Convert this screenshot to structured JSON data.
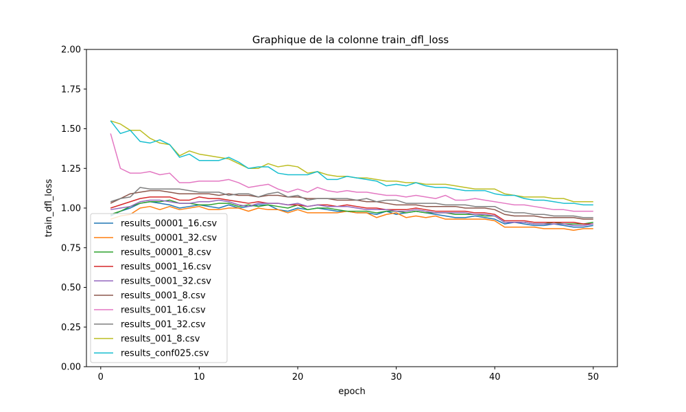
{
  "chart_data": {
    "type": "line",
    "title": "Graphique de la colonne train_dfl_loss",
    "xlabel": "epoch",
    "ylabel": "train_dfl_loss",
    "xlim": [
      -1.45,
      52.45
    ],
    "ylim": [
      0,
      2
    ],
    "xticks": [
      0,
      10,
      20,
      30,
      40,
      50
    ],
    "yticks": [
      0.0,
      0.25,
      0.5,
      0.75,
      1.0,
      1.25,
      1.5,
      1.75,
      2.0
    ],
    "ytick_labels": [
      "0.00",
      "0.25",
      "0.50",
      "0.75",
      "1.00",
      "1.25",
      "1.50",
      "1.75",
      "2.00"
    ],
    "grid": false,
    "legend_position": "lower-left",
    "x": [
      1,
      2,
      3,
      4,
      5,
      6,
      7,
      8,
      9,
      10,
      11,
      12,
      13,
      14,
      15,
      16,
      17,
      18,
      19,
      20,
      21,
      22,
      23,
      24,
      25,
      26,
      27,
      28,
      29,
      30,
      31,
      32,
      33,
      34,
      35,
      36,
      37,
      38,
      39,
      40,
      41,
      42,
      43,
      44,
      45,
      46,
      47,
      48,
      49,
      50
    ],
    "series": [
      {
        "name": "results_00001_16.csv",
        "color": "#1f77b4",
        "values": [
          0.95,
          0.98,
          1.0,
          1.03,
          1.04,
          1.03,
          1.02,
          1.0,
          1.01,
          1.02,
          1.01,
          1.0,
          1.02,
          1.0,
          1.01,
          1.02,
          1.02,
          0.99,
          0.98,
          1.0,
          0.99,
          1.0,
          0.99,
          0.98,
          0.98,
          0.97,
          0.97,
          0.96,
          0.98,
          0.96,
          0.97,
          0.98,
          0.97,
          0.96,
          0.95,
          0.94,
          0.94,
          0.95,
          0.94,
          0.93,
          0.9,
          0.91,
          0.9,
          0.89,
          0.89,
          0.9,
          0.89,
          0.88,
          0.88,
          0.89
        ]
      },
      {
        "name": "results_00001_32.csv",
        "color": "#ff7f0e",
        "values": [
          0.93,
          0.95,
          0.96,
          1.0,
          1.01,
          0.99,
          1.01,
          0.99,
          1.0,
          1.01,
          0.99,
          0.99,
          1.0,
          1.0,
          0.98,
          1.0,
          0.99,
          0.99,
          0.97,
          0.99,
          0.97,
          0.97,
          0.97,
          0.97,
          0.98,
          0.97,
          0.97,
          0.94,
          0.96,
          0.97,
          0.94,
          0.95,
          0.94,
          0.95,
          0.93,
          0.93,
          0.93,
          0.93,
          0.93,
          0.92,
          0.88,
          0.88,
          0.88,
          0.88,
          0.87,
          0.87,
          0.87,
          0.86,
          0.87,
          0.87
        ]
      },
      {
        "name": "results_00001_8.csv",
        "color": "#2ca02c",
        "values": [
          0.96,
          0.98,
          1.01,
          1.03,
          1.04,
          1.04,
          1.05,
          1.03,
          1.03,
          1.02,
          1.02,
          1.03,
          1.03,
          1.01,
          1.02,
          1.01,
          1.02,
          1.01,
          1.0,
          1.02,
          0.99,
          1.0,
          1.0,
          0.99,
          0.98,
          0.98,
          0.98,
          0.97,
          0.98,
          0.98,
          0.97,
          0.98,
          0.97,
          0.97,
          0.97,
          0.96,
          0.96,
          0.96,
          0.95,
          0.95,
          0.91,
          0.91,
          0.91,
          0.9,
          0.9,
          0.91,
          0.9,
          0.9,
          0.9,
          0.91
        ]
      },
      {
        "name": "results_0001_16.csv",
        "color": "#d62728",
        "values": [
          1.0,
          1.02,
          1.04,
          1.06,
          1.07,
          1.07,
          1.07,
          1.05,
          1.05,
          1.07,
          1.06,
          1.06,
          1.05,
          1.04,
          1.03,
          1.04,
          1.03,
          1.03,
          1.02,
          1.02,
          1.01,
          1.02,
          1.02,
          1.01,
          1.02,
          1.01,
          1.0,
          1.0,
          0.99,
          0.99,
          0.99,
          1.0,
          0.99,
          0.98,
          0.98,
          0.98,
          0.98,
          0.97,
          0.97,
          0.96,
          0.92,
          0.92,
          0.92,
          0.91,
          0.91,
          0.91,
          0.91,
          0.91,
          0.9,
          0.9
        ]
      },
      {
        "name": "results_0001_32.csv",
        "color": "#9467bd",
        "values": [
          0.99,
          1.0,
          1.01,
          1.04,
          1.05,
          1.05,
          1.04,
          1.03,
          1.03,
          1.04,
          1.04,
          1.05,
          1.04,
          1.02,
          1.01,
          1.03,
          1.03,
          1.03,
          1.02,
          1.03,
          1.01,
          1.02,
          1.01,
          1.01,
          1.01,
          1.0,
          0.99,
          0.99,
          0.99,
          0.98,
          0.98,
          0.99,
          0.98,
          0.97,
          0.97,
          0.97,
          0.97,
          0.96,
          0.96,
          0.95,
          0.91,
          0.91,
          0.91,
          0.9,
          0.9,
          0.9,
          0.9,
          0.89,
          0.89,
          0.9
        ]
      },
      {
        "name": "results_0001_8.csv",
        "color": "#8c564b",
        "values": [
          1.03,
          1.06,
          1.09,
          1.1,
          1.11,
          1.11,
          1.1,
          1.09,
          1.09,
          1.09,
          1.09,
          1.08,
          1.09,
          1.08,
          1.08,
          1.07,
          1.08,
          1.08,
          1.07,
          1.07,
          1.06,
          1.06,
          1.06,
          1.05,
          1.05,
          1.05,
          1.04,
          1.04,
          1.03,
          1.02,
          1.02,
          1.02,
          1.01,
          1.01,
          1.01,
          1.01,
          1.0,
          1.0,
          1.0,
          0.99,
          0.96,
          0.95,
          0.95,
          0.95,
          0.94,
          0.94,
          0.94,
          0.94,
          0.93,
          0.93
        ]
      },
      {
        "name": "results_001_16.csv",
        "color": "#e377c2",
        "values": [
          1.47,
          1.25,
          1.22,
          1.22,
          1.23,
          1.21,
          1.22,
          1.16,
          1.16,
          1.17,
          1.17,
          1.17,
          1.18,
          1.16,
          1.13,
          1.14,
          1.15,
          1.12,
          1.1,
          1.12,
          1.1,
          1.13,
          1.11,
          1.1,
          1.11,
          1.1,
          1.1,
          1.09,
          1.08,
          1.08,
          1.07,
          1.08,
          1.07,
          1.06,
          1.08,
          1.05,
          1.05,
          1.06,
          1.05,
          1.04,
          1.03,
          1.02,
          1.02,
          1.01,
          1.0,
          0.99,
          0.99,
          0.98,
          0.98,
          0.98
        ]
      },
      {
        "name": "results_001_32.csv",
        "color": "#7f7f7f",
        "values": [
          1.04,
          1.06,
          1.07,
          1.13,
          1.12,
          1.12,
          1.12,
          1.12,
          1.11,
          1.1,
          1.1,
          1.1,
          1.08,
          1.09,
          1.09,
          1.07,
          1.09,
          1.1,
          1.07,
          1.08,
          1.05,
          1.06,
          1.06,
          1.06,
          1.06,
          1.05,
          1.06,
          1.04,
          1.05,
          1.05,
          1.03,
          1.03,
          1.03,
          1.03,
          1.02,
          1.02,
          1.02,
          1.01,
          1.01,
          1.01,
          0.98,
          0.97,
          0.97,
          0.96,
          0.96,
          0.95,
          0.95,
          0.95,
          0.94,
          0.94
        ]
      },
      {
        "name": "results_001_8.csv",
        "color": "#bcbd22",
        "values": [
          1.55,
          1.53,
          1.49,
          1.49,
          1.44,
          1.41,
          1.4,
          1.33,
          1.36,
          1.34,
          1.33,
          1.32,
          1.31,
          1.28,
          1.25,
          1.25,
          1.28,
          1.26,
          1.27,
          1.26,
          1.22,
          1.23,
          1.21,
          1.2,
          1.2,
          1.19,
          1.19,
          1.18,
          1.17,
          1.17,
          1.16,
          1.16,
          1.15,
          1.15,
          1.15,
          1.14,
          1.13,
          1.12,
          1.12,
          1.12,
          1.09,
          1.08,
          1.07,
          1.07,
          1.07,
          1.06,
          1.06,
          1.04,
          1.04,
          1.04
        ]
      },
      {
        "name": "results_conf025.csv",
        "color": "#17becf",
        "values": [
          1.55,
          1.47,
          1.49,
          1.42,
          1.41,
          1.43,
          1.4,
          1.32,
          1.34,
          1.3,
          1.3,
          1.3,
          1.32,
          1.29,
          1.25,
          1.26,
          1.26,
          1.22,
          1.21,
          1.21,
          1.21,
          1.23,
          1.18,
          1.18,
          1.2,
          1.19,
          1.18,
          1.17,
          1.14,
          1.15,
          1.14,
          1.16,
          1.14,
          1.13,
          1.13,
          1.12,
          1.11,
          1.11,
          1.11,
          1.09,
          1.08,
          1.08,
          1.06,
          1.05,
          1.05,
          1.04,
          1.03,
          1.03,
          1.02,
          1.02
        ]
      }
    ]
  }
}
